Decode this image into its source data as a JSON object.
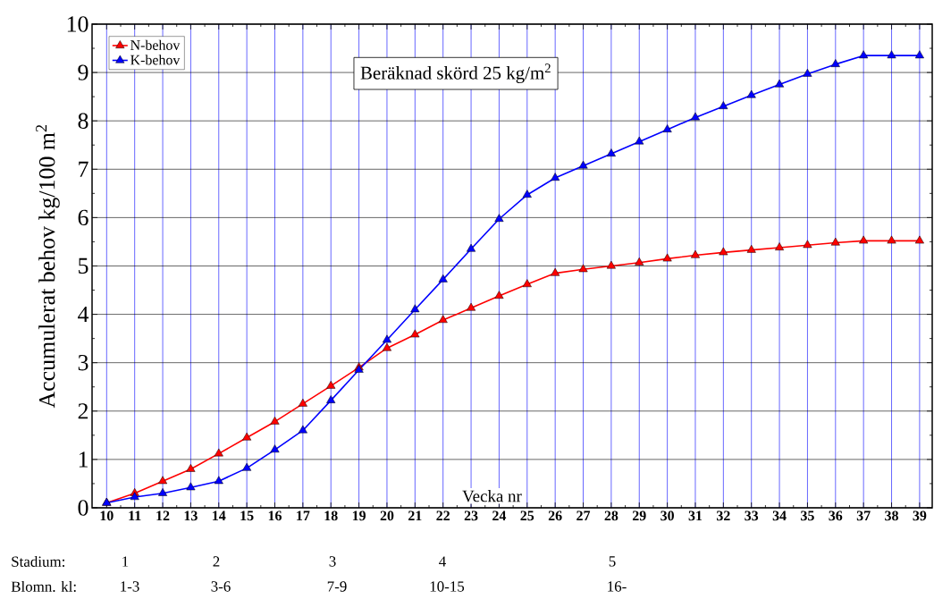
{
  "chart_data": {
    "type": "line",
    "xlabel": "Vecka nr",
    "ylabel": "Accumulerat behov kg/100 m$^{2}$",
    "x": [
      10,
      11,
      12,
      13,
      14,
      15,
      16,
      17,
      18,
      19,
      20,
      21,
      22,
      23,
      24,
      25,
      26,
      27,
      28,
      29,
      30,
      31,
      32,
      33,
      34,
      35,
      36,
      37,
      38,
      39
    ],
    "series": [
      {
        "name": "N-behov",
        "color": "#ff0000",
        "values": [
          0.1,
          0.3,
          0.55,
          0.8,
          1.12,
          1.45,
          1.78,
          2.15,
          2.52,
          2.9,
          3.3,
          3.58,
          3.88,
          4.13,
          4.38,
          4.62,
          4.85,
          4.93,
          5.0,
          5.07,
          5.15,
          5.22,
          5.28,
          5.33,
          5.38,
          5.43,
          5.48,
          5.52,
          5.52,
          5.52
        ]
      },
      {
        "name": "K-behov",
        "color": "#0000ff",
        "values": [
          0.1,
          0.22,
          0.3,
          0.42,
          0.55,
          0.82,
          1.2,
          1.6,
          2.22,
          2.85,
          3.47,
          4.1,
          4.72,
          5.35,
          5.97,
          6.47,
          6.82,
          7.07,
          7.32,
          7.57,
          7.82,
          8.07,
          8.3,
          8.53,
          8.75,
          8.97,
          9.17,
          9.35,
          9.35,
          9.35
        ]
      }
    ],
    "xlim": [
      9.48,
      39.45
    ],
    "ylim": [
      0,
      10
    ],
    "xticks": [
      10,
      11,
      12,
      13,
      14,
      15,
      16,
      17,
      18,
      19,
      20,
      21,
      22,
      23,
      24,
      25,
      26,
      27,
      28,
      29,
      30,
      31,
      32,
      33,
      34,
      35,
      36,
      37,
      38,
      39
    ],
    "yticks": [
      0,
      1,
      2,
      3,
      4,
      5,
      6,
      7,
      8,
      9,
      10
    ],
    "grid": true,
    "legend": "top left",
    "marker": "triangle",
    "line_style": "solid",
    "annotations": [
      "Beräknad skörd 25 kg/m$^{2}$",
      "Stadium:",
      "1",
      "2",
      "3",
      "4",
      "5",
      "Blomn. kl:",
      "1-3",
      "3-6",
      "7-9",
      "10-15",
      "16-"
    ]
  }
}
